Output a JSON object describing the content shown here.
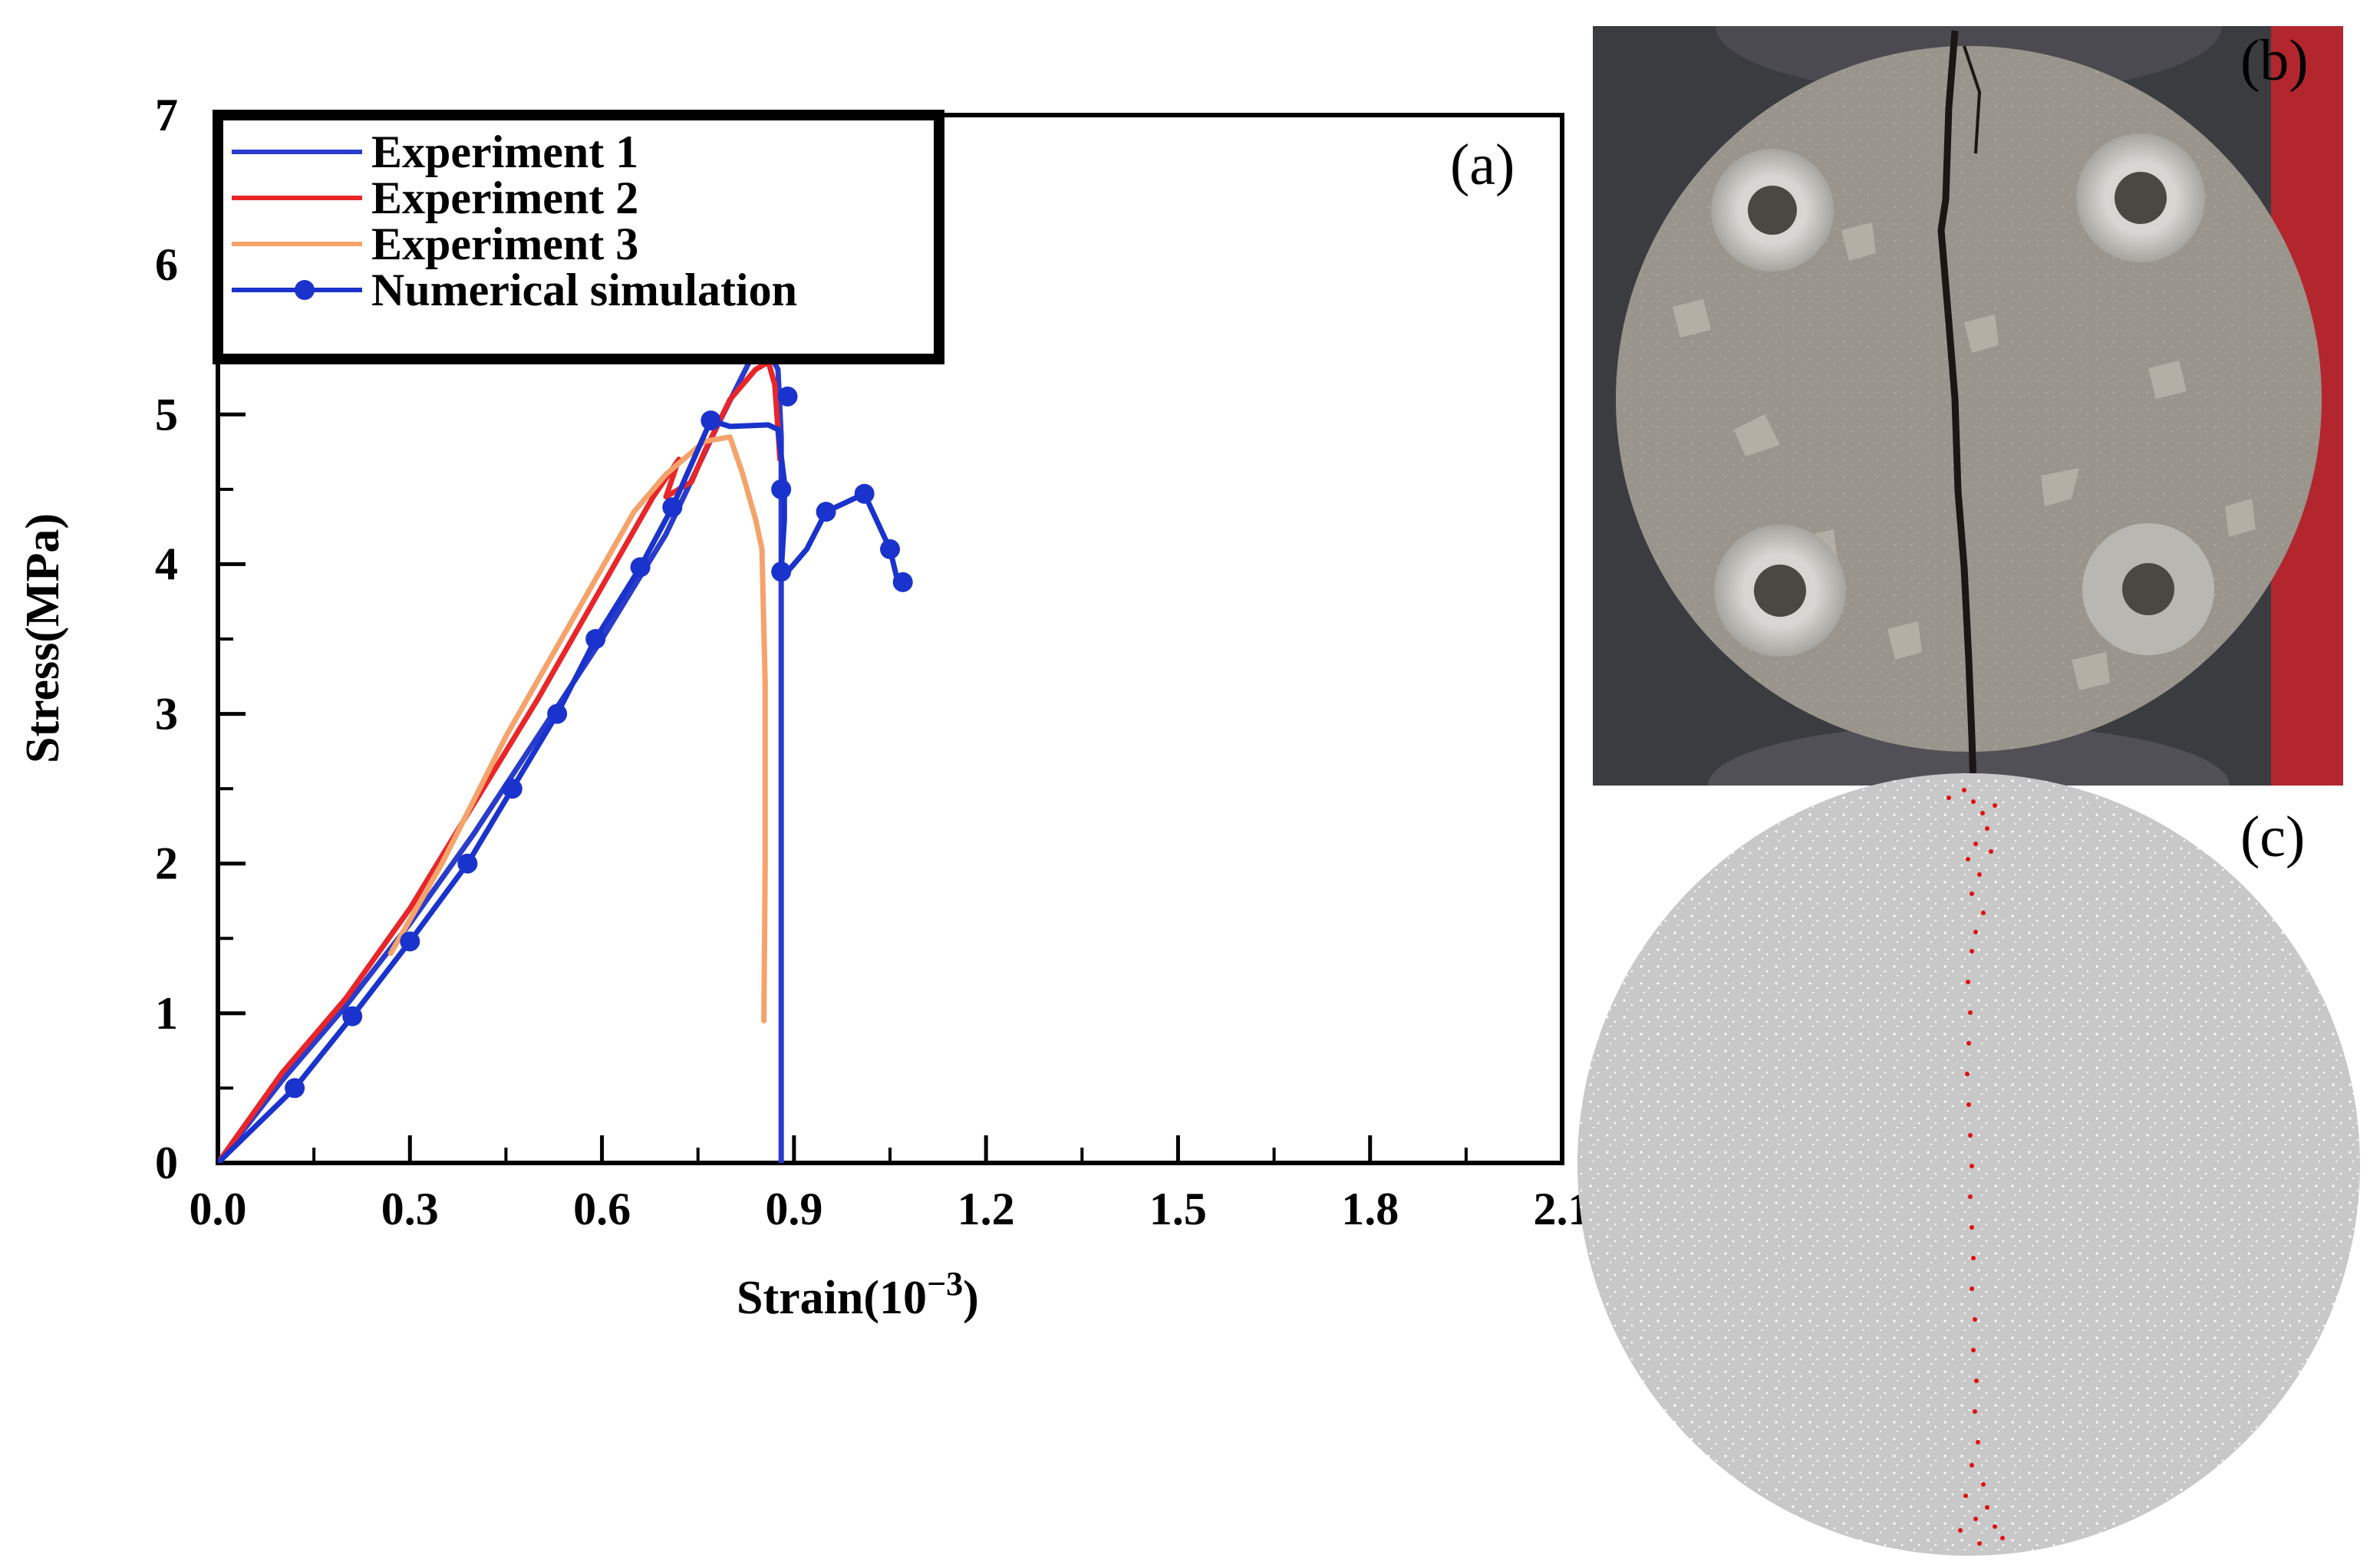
{
  "chart_data": {
    "type": "line",
    "panel_label": "(a)",
    "xlabel_base": "Strain(10",
    "xlabel_exp": "−3",
    "xlabel_close": ")",
    "ylabel": "Stress(MPa)",
    "xlim": [
      0.0,
      2.1
    ],
    "ylim": [
      0,
      7
    ],
    "xticks": [
      "0.0",
      "0.3",
      "0.6",
      "0.9",
      "1.2",
      "1.5",
      "1.8",
      "2.1"
    ],
    "yticks": [
      "0",
      "1",
      "2",
      "3",
      "4",
      "5",
      "6",
      "7"
    ],
    "legend_position": "top-left",
    "series": [
      {
        "name": "Experiment 1",
        "color": "#2a3ccc",
        "marker": false,
        "x": [
          0.0,
          0.1,
          0.2,
          0.3,
          0.4,
          0.5,
          0.6,
          0.7,
          0.78,
          0.83,
          0.86,
          0.875,
          0.88,
          0.88,
          0.88,
          0.88
        ],
        "y": [
          0.0,
          0.55,
          1.05,
          1.6,
          2.2,
          2.85,
          3.5,
          4.2,
          4.92,
          5.35,
          5.42,
          5.3,
          4.85,
          3.0,
          1.0,
          0.0
        ]
      },
      {
        "name": "Experiment 2",
        "color": "#e8262a",
        "marker": false,
        "x": [
          0.0,
          0.1,
          0.2,
          0.3,
          0.4,
          0.5,
          0.6,
          0.68,
          0.72,
          0.7,
          0.74,
          0.76,
          0.8,
          0.84,
          0.86,
          0.87,
          0.875,
          0.878
        ],
        "y": [
          0.0,
          0.6,
          1.1,
          1.7,
          2.4,
          3.1,
          3.85,
          4.45,
          4.7,
          4.45,
          4.55,
          4.75,
          5.1,
          5.3,
          5.35,
          5.2,
          4.9,
          4.7
        ]
      },
      {
        "name": "Experiment 3",
        "color": "#f5a36b",
        "marker": false,
        "x": [
          0.27,
          0.35,
          0.45,
          0.55,
          0.65,
          0.7,
          0.76,
          0.8,
          0.82,
          0.84,
          0.85,
          0.855,
          0.855,
          0.853
        ],
        "y": [
          1.4,
          2.0,
          2.85,
          3.6,
          4.35,
          4.6,
          4.82,
          4.85,
          4.6,
          4.3,
          4.1,
          3.2,
          2.0,
          0.95
        ]
      },
      {
        "name": "Numerical simulation",
        "color": "#1a33cc",
        "marker": true,
        "x": [
          0.0,
          0.12,
          0.21,
          0.3,
          0.39,
          0.46,
          0.53,
          0.59,
          0.66,
          0.71,
          0.77,
          0.8,
          0.86,
          0.875,
          0.885,
          0.885,
          0.88,
          0.89,
          0.92,
          0.95,
          1.01,
          1.05,
          1.06,
          1.07
        ],
        "y": [
          0.0,
          0.5,
          0.98,
          1.48,
          2.0,
          2.5,
          3.0,
          3.5,
          3.98,
          4.38,
          4.96,
          4.92,
          4.93,
          4.9,
          4.55,
          4.3,
          3.95,
          3.95,
          4.1,
          4.35,
          4.47,
          4.1,
          3.92,
          3.88
        ],
        "marker_x": [
          0.12,
          0.21,
          0.3,
          0.39,
          0.46,
          0.53,
          0.59,
          0.66,
          0.71,
          0.77,
          0.88,
          0.89,
          0.88,
          0.95,
          1.01,
          1.05,
          1.07
        ],
        "marker_y": [
          0.5,
          0.98,
          1.48,
          2.0,
          2.5,
          3.0,
          3.5,
          3.98,
          4.38,
          4.96,
          4.5,
          5.12,
          3.95,
          4.35,
          4.47,
          4.1,
          3.88
        ]
      }
    ]
  },
  "panels": {
    "photo_label": "(b)",
    "simulation_label": "(c)",
    "photo_colors": {
      "specimen": "#8a8478",
      "background": "#3a3c40",
      "washer": "#c9c7c2",
      "crack": "#1a1714"
    },
    "simulation_colors": {
      "particles": "#c8c8c8",
      "crack": "#e01010"
    }
  }
}
